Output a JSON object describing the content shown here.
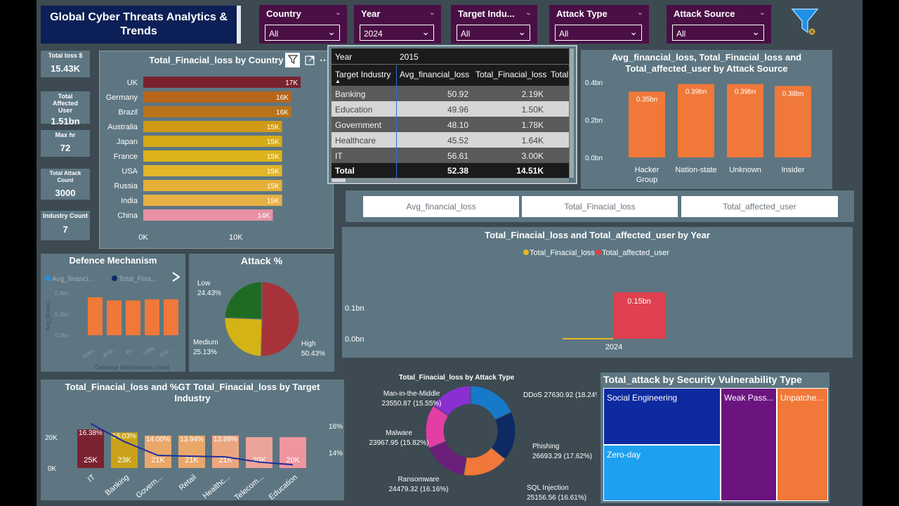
{
  "report": {
    "title": "Global Cyber Threats Analytics & Trends"
  },
  "slicers": [
    {
      "title": "Country",
      "value": "All"
    },
    {
      "title": "Year",
      "value": "2024"
    },
    {
      "title": "Target Indu...",
      "value": "All"
    },
    {
      "title": "Attack Type",
      "value": "All"
    },
    {
      "title": "Attack Source",
      "value": "All"
    }
  ],
  "icons": {
    "filter": "funnel-filter-icon",
    "visual_filter": "funnel-icon",
    "focus": "expand-icon",
    "more": "more-icon",
    "play": "play-icon"
  },
  "kpis": [
    {
      "label": "Total loss $",
      "value": "15.43K"
    },
    {
      "label": "Total Affected User",
      "value": "1.51bn"
    },
    {
      "label": "Max hr",
      "value": "72"
    },
    {
      "label": "Total Attack Count",
      "value": "3000"
    },
    {
      "label": "Industry Count",
      "value": "7"
    }
  ],
  "country_chart": {
    "title": "Total_Finacial_loss by Country",
    "categories": [
      "UK",
      "Germany",
      "Brazil",
      "Australia",
      "Japan",
      "France",
      "USA",
      "Russia",
      "India",
      "China"
    ],
    "values": [
      17,
      16,
      16,
      15,
      15,
      15,
      15,
      15,
      15,
      14
    ],
    "labels": [
      "17K",
      "16K",
      "16K",
      "15K",
      "15K",
      "15K",
      "15K",
      "15K",
      "15K",
      "14K"
    ],
    "colors": [
      "#7b2230",
      "#b7651b",
      "#b9731a",
      "#d09a18",
      "#d6aa17",
      "#dcb31a",
      "#e2b52a",
      "#e4b038",
      "#e5b146",
      "#e892a5"
    ],
    "axis_ticks": [
      "0K",
      "10K"
    ]
  },
  "industry_table": {
    "header": {
      "year_label": "Year",
      "year_value": "2015"
    },
    "columns": [
      "Target Industry",
      "Avg_financial_loss",
      "Total_Finacial_loss",
      "Total"
    ],
    "rows": [
      {
        "industry": "Banking",
        "avg": "50.92",
        "total": "2.19K"
      },
      {
        "industry": "Education",
        "avg": "49.96",
        "total": "1.50K"
      },
      {
        "industry": "Government",
        "avg": "48.10",
        "total": "1.78K"
      },
      {
        "industry": "Healthcare",
        "avg": "45.52",
        "total": "1.64K"
      },
      {
        "industry": "IT",
        "avg": "56.61",
        "total": "3.00K"
      }
    ],
    "total_row": {
      "label": "Total",
      "avg": "52.38",
      "total": "14.51K"
    }
  },
  "source_chart": {
    "title": "Avg_financial_loss, Total_Finacial_loss and Total_affected_user by Attack Source",
    "categories": [
      "Hacker Group",
      "Nation-state",
      "Unknown",
      "Insider"
    ],
    "values": [
      0.35,
      0.39,
      0.39,
      0.38
    ],
    "labels": [
      "0.35bn",
      "0.39bn",
      "0.39bn",
      "0.38bn"
    ],
    "y_ticks": [
      "0.4bn",
      "0.2bn",
      "0.0bn"
    ],
    "y_max": 0.4,
    "color": "#f07838"
  },
  "metric_buttons": [
    "Avg_financial_loss",
    "Total_Finacial_loss",
    "Total_affected_user"
  ],
  "year_chart": {
    "title": "Total_Finacial_loss and Total_affected_user by Year",
    "legend": [
      {
        "name": "Total_Finacial_loss",
        "color": "#e6b520"
      },
      {
        "name": "Total_affected_user",
        "color": "#e0404f"
      }
    ],
    "category": "2024",
    "value": 0.15,
    "value_label": "0.15bn",
    "y_ticks": [
      "0.1bn",
      "0.0bn"
    ]
  },
  "defence_chart": {
    "title": "Defence Mechanism",
    "legend": [
      "Avg_financi...",
      "Total_Fina..."
    ],
    "y_ticks": [
      "0.4bn",
      "0.2bn",
      "0.0bn"
    ],
    "y_label": "Avg_financi...",
    "x_label": "Defense Mechanism Used",
    "x_ticks": [
      "Antiv...",
      "AI-b...",
      "Fi...",
      "VPN",
      "Enc..."
    ],
    "values": [
      0.36,
      0.33,
      0.33,
      0.34,
      0.34
    ],
    "color": "#f07838"
  },
  "attack_pie": {
    "title": "Attack %",
    "slices": [
      {
        "name": "High",
        "value": 50.43,
        "label": "50.43%",
        "color": "#a8323a"
      },
      {
        "name": "Medium",
        "value": 25.13,
        "label": "25.13%",
        "color": "#d4b414"
      },
      {
        "name": "Low",
        "value": 24.43,
        "label": "24.43%",
        "color": "#1f6b24"
      }
    ]
  },
  "industry_combo": {
    "title": "Total_Finacial_loss and %GT Total_Finacial_loss by Target Industry",
    "categories": [
      "IT",
      "Banking",
      "Govern...",
      "Retail",
      "Healthc...",
      "Telecom...",
      "Education"
    ],
    "values": [
      25,
      23,
      21,
      21,
      21,
      20,
      20
    ],
    "value_labels": [
      "25K",
      "23K",
      "21K",
      "21K",
      "21K",
      "20K",
      "20K"
    ],
    "pct": [
      16.38,
      15.03,
      14.0,
      13.94,
      13.89,
      13.5,
      13.3
    ],
    "pct_labels": [
      "16.38%",
      "15.03%",
      "14.00%",
      "13.94%",
      "13.89%",
      "",
      ""
    ],
    "colors": [
      "#7b2230",
      "#c9a21a",
      "#eaa76a",
      "#eaa76a",
      "#eba680",
      "#eca39a",
      "#ef95a0"
    ],
    "y_ticks": [
      "20K",
      "0K"
    ],
    "y2_ticks": [
      "16%",
      "14%"
    ]
  },
  "attack_donut": {
    "title": "Total_Finacial_loss by Attack Type",
    "slices": [
      {
        "name": "DDoS",
        "value": 27630.92,
        "label": "DDoS 27630.92 (18.24%)",
        "color": "#1679c9"
      },
      {
        "name": "Phishing",
        "value": 26693.29,
        "label": "Phishing 26693.29 (17.62%)",
        "color": "#0e2a63"
      },
      {
        "name": "SQL Injection",
        "value": 25156.56,
        "label": "SQL Injection 25156.56 (16.61%)",
        "color": "#f07838"
      },
      {
        "name": "Ransomware",
        "value": 24479.32,
        "label": "Ransomware 24479.32 (16.16%)",
        "color": "#6b1f7a"
      },
      {
        "name": "Malware",
        "value": 23967.95,
        "label": "Malware 23967.95 (15.82%)",
        "color": "#e23ea5"
      },
      {
        "name": "Man-in-the-Middle",
        "value": 23550.87,
        "label": "Man-in-the-Middle 23550.87 (15.55%)",
        "color": "#8a2fd0"
      }
    ]
  },
  "treemap": {
    "title": "Total_attack by Security Vulnerability Type",
    "tiles": [
      {
        "name": "Social Engineering",
        "color": "#0e2aa0"
      },
      {
        "name": "Zero-day",
        "color": "#1ea0f0"
      },
      {
        "name": "Weak Pass...",
        "color": "#6b1480"
      },
      {
        "name": "Unpatche...",
        "color": "#f07838"
      }
    ]
  }
}
